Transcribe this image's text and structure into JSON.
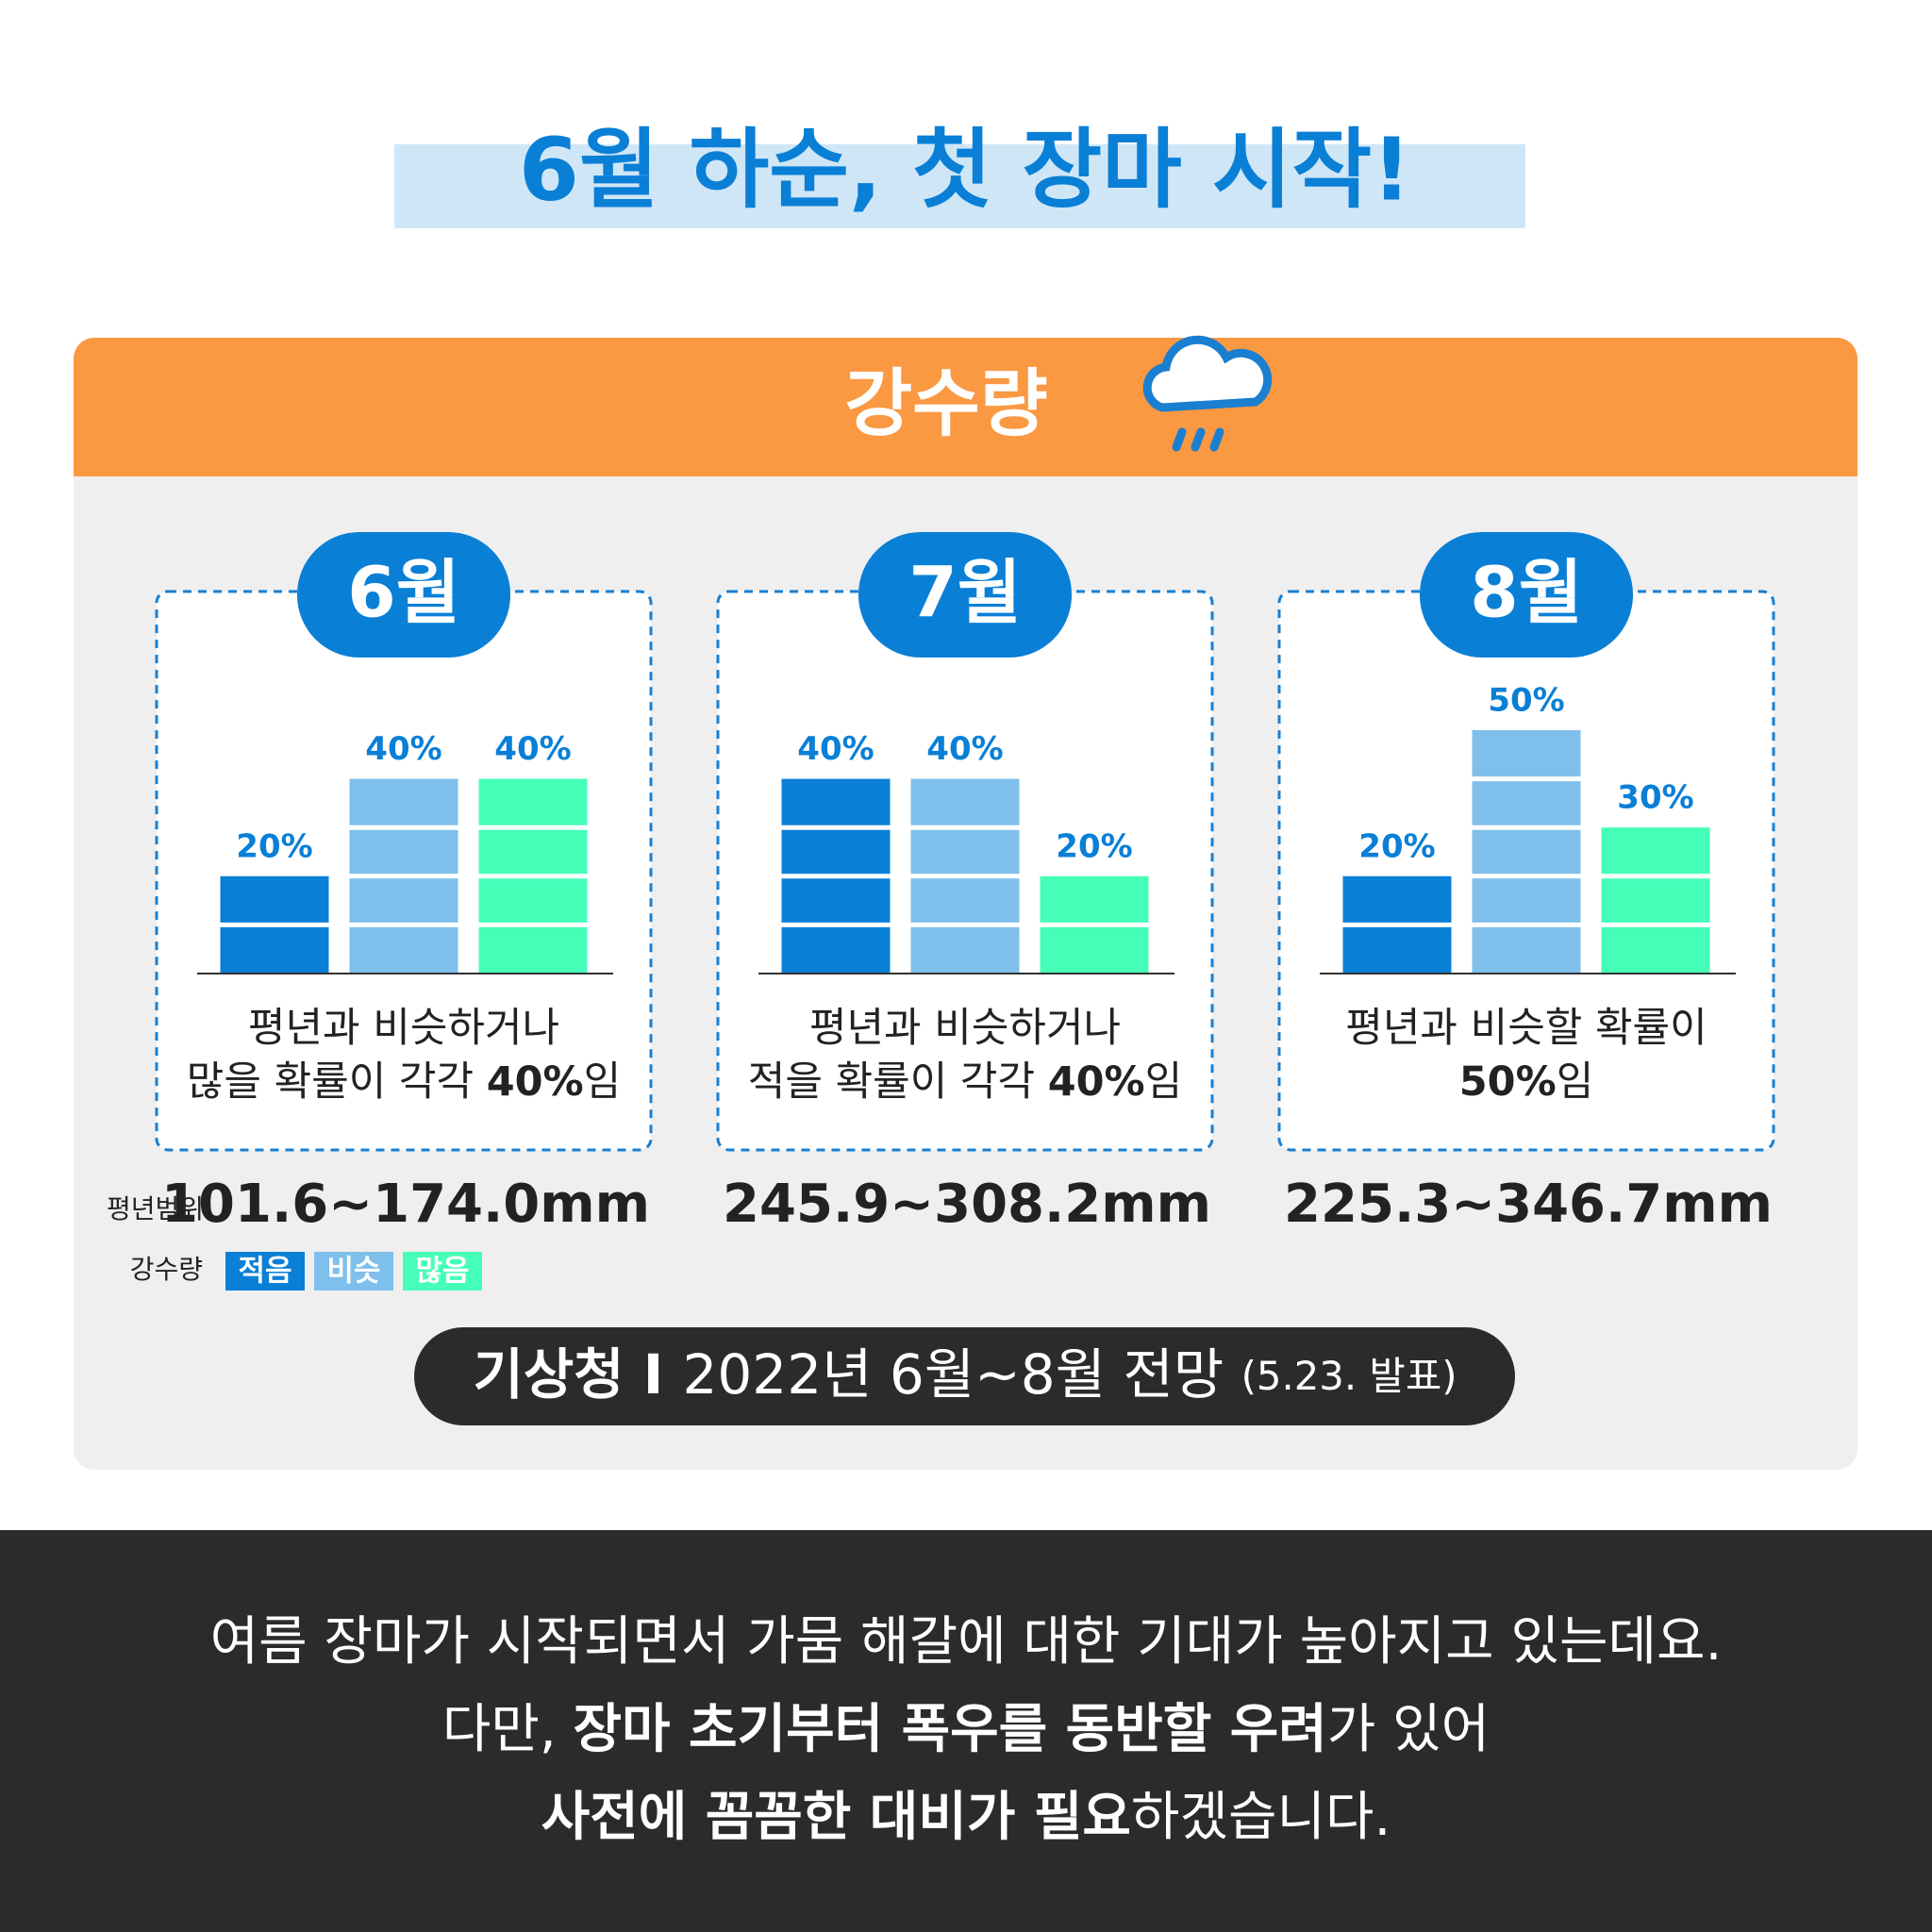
{
  "title": "6월 하순, 첫 장마 시작!",
  "header": "강수량",
  "legend": {
    "title": "강수량",
    "items": [
      {
        "name": "적음",
        "color": "#0a7fd6"
      },
      {
        "name": "비슷",
        "color": "#7fbfec"
      },
      {
        "name": "많음",
        "color": "#45ffb9"
      }
    ]
  },
  "chart_data": [
    {
      "type": "bar",
      "title": "6월",
      "values": [
        20,
        40,
        40
      ],
      "value_labels": [
        "20%",
        "40%",
        "40%"
      ],
      "description": [
        [
          {
            "text": "평년과 비슷하거나"
          }
        ],
        [
          {
            "text": "많을 확률이 각각 "
          },
          {
            "text": "40%",
            "bold": true
          },
          {
            "text": "임"
          }
        ]
      ],
      "range_label": "평년범위",
      "range": "101.6~174.0mm"
    },
    {
      "type": "bar",
      "title": "7월",
      "values": [
        40,
        40,
        20
      ],
      "value_labels": [
        "40%",
        "40%",
        "20%"
      ],
      "description": [
        [
          {
            "text": "평년과 비슷하거나"
          }
        ],
        [
          {
            "text": "적을 확률이 각각 "
          },
          {
            "text": "40%",
            "bold": true
          },
          {
            "text": "임"
          }
        ]
      ],
      "range": "245.9~308.2mm"
    },
    {
      "type": "bar",
      "title": "8월",
      "values": [
        20,
        50,
        30
      ],
      "value_labels": [
        "20%",
        "50%",
        "30%"
      ],
      "description": [
        [
          {
            "text": "평년과 비슷할 확률이"
          }
        ],
        [
          {
            "text": "50%",
            "bold": true
          },
          {
            "text": "임"
          }
        ]
      ],
      "range": "225.3~346.7mm"
    }
  ],
  "source": [
    {
      "text": "기상청 I ",
      "bold": true
    },
    {
      "text": "2022년 6월~8월 전망 "
    },
    {
      "text": "(5.23. 발표)",
      "small": true
    }
  ],
  "footer": [
    [
      {
        "text": "여름 장마가 시작되면서 가뭄 해갈에 대한 기대가 높아지고 있는데요."
      }
    ],
    [
      {
        "text": "다만, "
      },
      {
        "text": "장마 초기부터 폭우를 동반할 우려",
        "bold": true
      },
      {
        "text": "가 있어"
      }
    ],
    [
      {
        "text": "사전에 꼼꼼한 대비가 필요",
        "bold": true
      },
      {
        "text": "하겠습니다."
      }
    ]
  ]
}
